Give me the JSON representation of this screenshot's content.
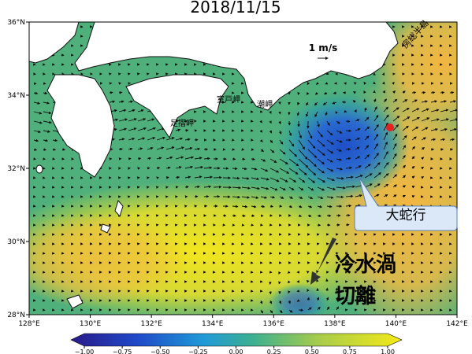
{
  "map": {
    "title": "2018/11/15",
    "xlim": [
      128,
      142
    ],
    "ylim": [
      28,
      36
    ],
    "xticks": [
      {
        "value": 128,
        "label": "128°E"
      },
      {
        "value": 130,
        "label": "130°E"
      },
      {
        "value": 132,
        "label": "132°E"
      },
      {
        "value": 134,
        "label": "134°E"
      },
      {
        "value": 136,
        "label": "136°E"
      },
      {
        "value": 138,
        "label": "138°E"
      },
      {
        "value": 140,
        "label": "140°E"
      },
      {
        "value": 142,
        "label": "142°E"
      }
    ],
    "yticks": [
      {
        "value": 28,
        "label": "28°N"
      },
      {
        "value": 30,
        "label": "30°N"
      },
      {
        "value": 32,
        "label": "32°N"
      },
      {
        "value": 34,
        "label": "34°N"
      },
      {
        "value": 36,
        "label": "36°N"
      }
    ],
    "scale_label": "1 m/s",
    "place_labels": [
      "房総半島",
      "室戸岬",
      "足摺岬",
      "潮岬"
    ],
    "callout": "大蛇行",
    "annotation": [
      "冷水渦",
      "切離"
    ],
    "colorbar": {
      "lim": [
        -1,
        1
      ],
      "ticks": [
        {
          "value": -1,
          "label": "−1.00"
        },
        {
          "value": -0.75,
          "label": "−0.75"
        },
        {
          "value": -0.5,
          "label": "−0.50"
        },
        {
          "value": -0.25,
          "label": "−0.25"
        },
        {
          "value": 0,
          "label": "0.00"
        },
        {
          "value": 0.25,
          "label": "0.25"
        },
        {
          "value": 0.5,
          "label": "0.50"
        },
        {
          "value": 0.75,
          "label": "0.75"
        },
        {
          "value": 1,
          "label": "1.00"
        }
      ]
    }
  }
}
